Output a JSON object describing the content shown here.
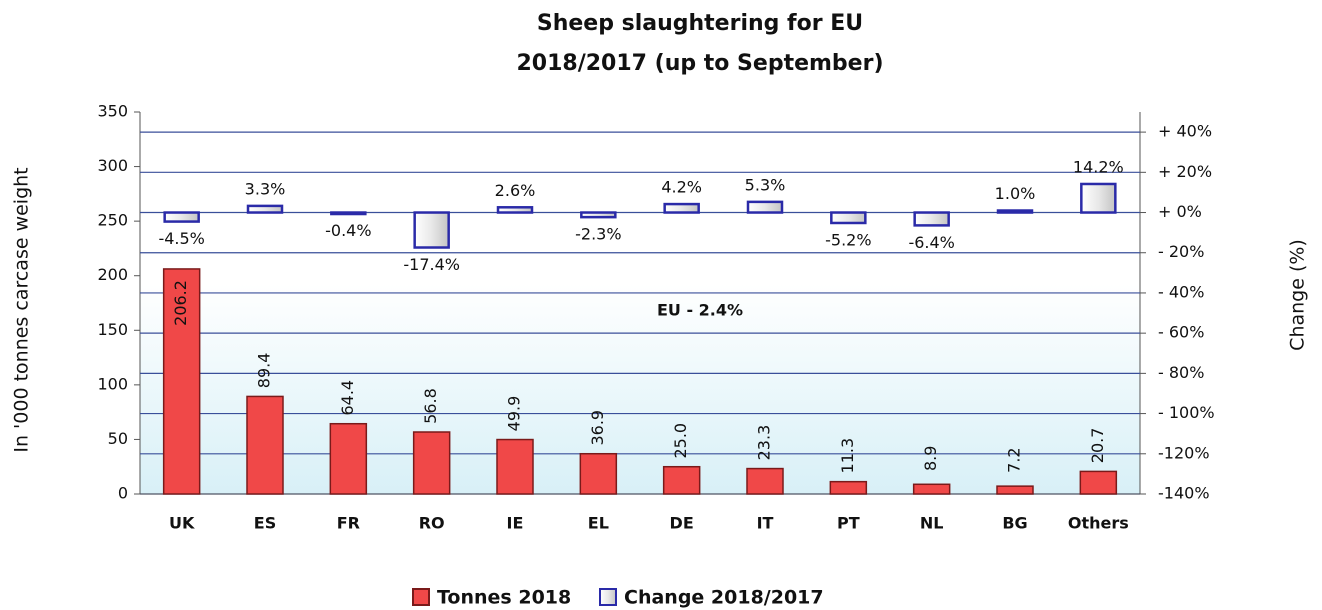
{
  "chart_data": {
    "type": "bar",
    "title": [
      "Sheep slaughtering for EU",
      "2018/2017 (up to September)"
    ],
    "ylabel": "In '000 tonnes carcase weight",
    "y2label": "Change  (%)",
    "annotation": "EU  - 2.4%",
    "categories": [
      "UK",
      "ES",
      "FR",
      "RO",
      "IE",
      "EL",
      "DE",
      "IT",
      "PT",
      "NL",
      "BG",
      "Others"
    ],
    "series": [
      {
        "name": "Tonnes 2018",
        "color": "#f04848",
        "axis": "y",
        "values": [
          206.2,
          89.4,
          64.4,
          56.8,
          49.9,
          36.9,
          25.0,
          23.3,
          11.3,
          8.9,
          7.2,
          20.7
        ],
        "value_labels": [
          "206.2",
          "89.4",
          "64.4",
          "56.8",
          "49.9",
          "36.9",
          "25.0",
          "23.3",
          "11.3",
          "8.9",
          "7.2",
          "20.7"
        ]
      },
      {
        "name": "Change 2018/2017",
        "color": "#2a2aa8",
        "axis": "y2",
        "values": [
          -4.5,
          3.3,
          -0.4,
          -17.4,
          2.6,
          -2.3,
          4.2,
          5.3,
          -5.2,
          -6.4,
          1.0,
          14.2
        ],
        "value_labels": [
          "-4.5%",
          "3.3%",
          "-0.4%",
          "-17.4%",
          "2.6%",
          "-2.3%",
          "4.2%",
          "5.3%",
          "-5.2%",
          "-6.4%",
          "1.0%",
          "14.2%"
        ]
      }
    ],
    "ylim": [
      0,
      350
    ],
    "yticks": [
      0,
      50,
      100,
      150,
      200,
      250,
      300,
      350
    ],
    "y2lim": [
      -140,
      50
    ],
    "y2ticks": [
      {
        "value": 40,
        "label": "+ 40%"
      },
      {
        "value": 20,
        "label": "+ 20%"
      },
      {
        "value": 0,
        "label": "+ 0%"
      },
      {
        "value": -20,
        "label": "- 20%"
      },
      {
        "value": -40,
        "label": "- 40%"
      },
      {
        "value": -60,
        "label": "- 60%"
      },
      {
        "value": -80,
        "label": "- 80%"
      },
      {
        "value": -100,
        "label": "- 100%"
      },
      {
        "value": -120,
        "label": "-120%"
      },
      {
        "value": -140,
        "label": "-140%"
      }
    ],
    "grid": true,
    "legend": "bottom"
  }
}
